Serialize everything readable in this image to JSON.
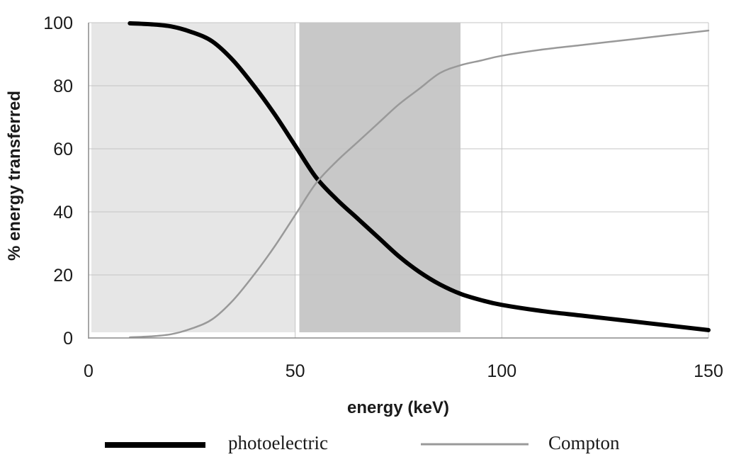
{
  "chart_data": {
    "type": "line",
    "title": "",
    "xlabel": "energy (keV)",
    "ylabel": "% energy transferred",
    "xlim": [
      0,
      150
    ],
    "ylim": [
      0,
      100
    ],
    "x_ticks": [
      "0",
      "50",
      "100",
      "150"
    ],
    "y_ticks": [
      "0",
      "20",
      "40",
      "60",
      "80",
      "100"
    ],
    "grid": true,
    "legend_position": "bottom",
    "shaded_regions": [
      {
        "x_start": 0,
        "x_end": 50,
        "color": "#e6e6e6"
      },
      {
        "x_start": 51,
        "x_end": 90,
        "color": "#c8c8c8"
      }
    ],
    "series": [
      {
        "name": "photoelectric",
        "color": "#000000",
        "x": [
          10,
          15,
          20,
          25,
          30,
          35,
          40,
          45,
          50,
          55,
          60,
          65,
          70,
          75,
          80,
          85,
          90,
          95,
          100,
          110,
          120,
          130,
          140,
          150
        ],
        "y": [
          99.8,
          99.5,
          98.8,
          97,
          94,
          88,
          80,
          71,
          61,
          51,
          44,
          38,
          32,
          26,
          21,
          17,
          14,
          12,
          10.5,
          8.5,
          7,
          5.5,
          4,
          2.5
        ]
      },
      {
        "name": "Compton",
        "color": "#999999",
        "x": [
          10,
          15,
          20,
          25,
          30,
          35,
          40,
          45,
          50,
          55,
          60,
          65,
          70,
          75,
          80,
          85,
          90,
          95,
          100,
          110,
          120,
          130,
          140,
          150
        ],
        "y": [
          0.2,
          0.5,
          1.2,
          3,
          6,
          12,
          20,
          29,
          39,
          49,
          56,
          62,
          68,
          74,
          79,
          84,
          86.5,
          88,
          89.5,
          91.5,
          93,
          94.5,
          96,
          97.5
        ]
      }
    ]
  }
}
